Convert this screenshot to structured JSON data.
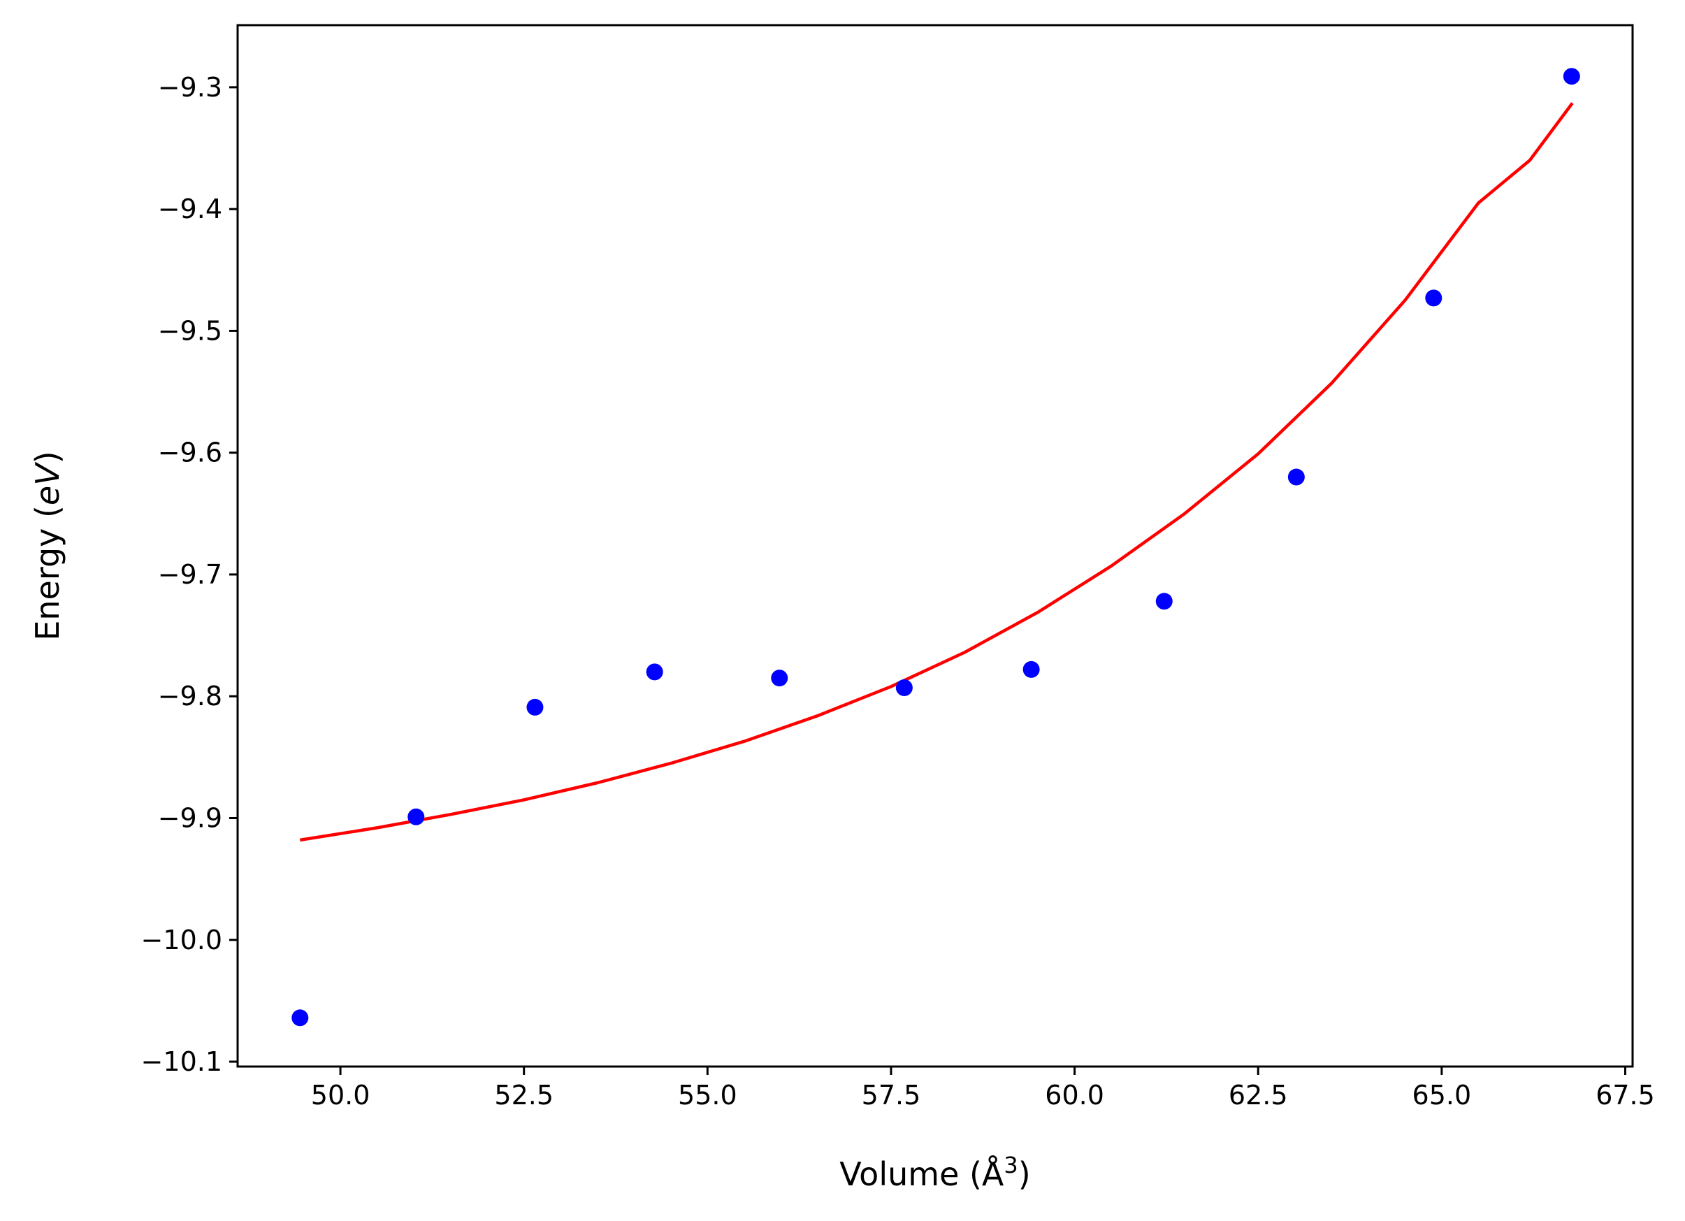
{
  "chart_data": {
    "type": "scatter",
    "title": "",
    "xlabel": "Volume (Å",
    "xlabel_sup": "3",
    "xlabel_close": ")",
    "ylabel": "Energy (",
    "ylabel_italic": "eV",
    "ylabel_close": ")",
    "xlim": [
      48.6,
      67.6
    ],
    "ylim": [
      -10.104,
      -9.249
    ],
    "grid": false,
    "xticks": [
      50.0,
      52.5,
      55.0,
      57.5,
      60.0,
      62.5,
      65.0,
      67.5
    ],
    "xtick_labels": [
      "50.0",
      "52.5",
      "55.0",
      "57.5",
      "60.0",
      "62.5",
      "65.0",
      "67.5"
    ],
    "yticks": [
      -9.3,
      -9.4,
      -9.5,
      -9.6,
      -9.7,
      -9.8,
      -9.9,
      -10.0,
      -10.1
    ],
    "ytick_labels": [
      "−9.3",
      "−9.4",
      "−9.5",
      "−9.6",
      "−9.7",
      "−9.8",
      "−9.9",
      "−10.0",
      "−10.1"
    ],
    "series": [
      {
        "kind": "scatter",
        "color": "#0000ff",
        "x": [
          49.45,
          51.03,
          52.65,
          54.28,
          55.98,
          57.68,
          59.41,
          61.22,
          63.02,
          64.89,
          66.77
        ],
        "y": [
          -10.064,
          -9.899,
          -9.809,
          -9.78,
          -9.785,
          -9.793,
          -9.778,
          -9.722,
          -9.62,
          -9.473,
          -9.291
        ]
      },
      {
        "kind": "line",
        "color": "#ff0000",
        "x": [
          49.45,
          50.5,
          51.5,
          52.5,
          53.5,
          54.5,
          55.5,
          56.5,
          57.5,
          58.5,
          59.5,
          60.5,
          61.5,
          62.5,
          63.5,
          64.5,
          65.5,
          66.2,
          66.78
        ],
        "y": [
          -9.918,
          -9.908,
          -9.897,
          -9.885,
          -9.871,
          -9.855,
          -9.837,
          -9.816,
          -9.792,
          -9.764,
          -9.731,
          -9.693,
          -9.65,
          -9.601,
          -9.543,
          -9.475,
          -9.395,
          -9.36,
          -9.313
        ]
      }
    ]
  }
}
